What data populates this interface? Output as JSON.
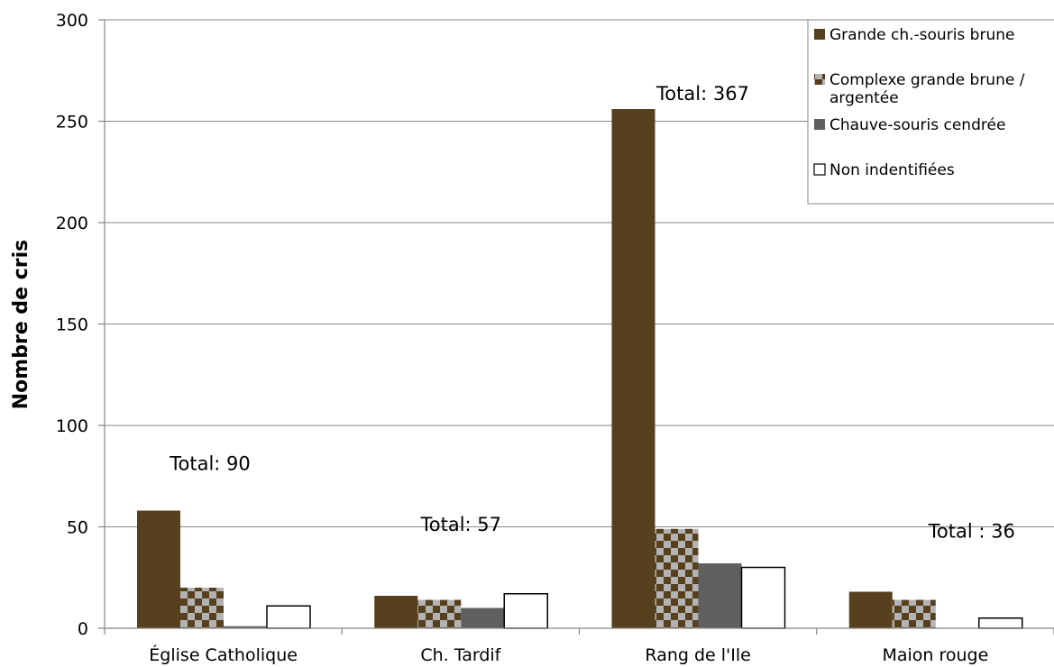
{
  "chart_data": {
    "type": "bar",
    "ylabel": "Nombre de cris",
    "ylim": [
      0,
      300
    ],
    "yticks": [
      "0",
      "50",
      "100",
      "150",
      "200",
      "250",
      "300"
    ],
    "grid": true,
    "legend_position": "top-right",
    "categories": [
      "Église Catholique",
      "Ch. Tardif",
      "Rang de l'Ile",
      "Maion rouge"
    ],
    "series": [
      {
        "name": "Grande ch.-souris brune",
        "values": [
          58,
          16,
          256,
          18
        ],
        "style": "solid",
        "color": "#56401e"
      },
      {
        "name": "Complexe grande brune / argentée",
        "values": [
          20,
          14,
          49,
          14
        ],
        "style": "checker",
        "color": "#56401e"
      },
      {
        "name": "Chauve-souris cendrée",
        "values": [
          1,
          10,
          32,
          0
        ],
        "style": "solid",
        "color": "#5f5f5f"
      },
      {
        "name": "Non indentifiées",
        "values": [
          11,
          17,
          30,
          5
        ],
        "style": "outline",
        "color": "#ffffff"
      }
    ],
    "annotations": [
      "Total: 90",
      "Total: 57",
      "Total: 367",
      "Total : 36"
    ]
  }
}
